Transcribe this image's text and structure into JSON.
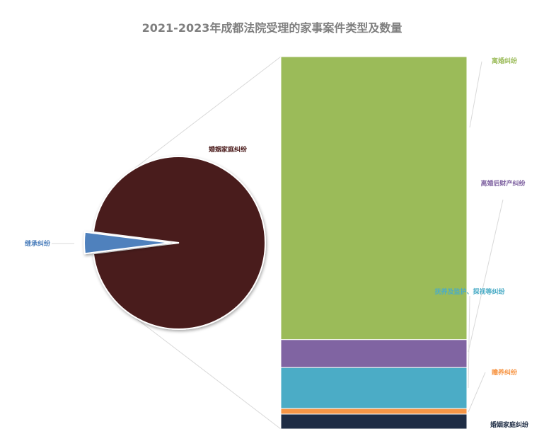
{
  "chart_data": {
    "type": "bar-of-pie",
    "title": "2021-2023年成都法院受理的家事案件类型及数量",
    "pie": {
      "slices": [
        {
          "name": "婚姻家庭纠纷",
          "value": 96,
          "color": "#4a1a1a"
        },
        {
          "name": "继承纠纷",
          "value": 4,
          "color": "#4f81bd"
        }
      ]
    },
    "bar": {
      "parent": "婚姻家庭纠纷",
      "segments": [
        {
          "name": "离婚纠纷",
          "value": 76,
          "color": "#9bbb59"
        },
        {
          "name": "离婚后财产纠纷",
          "value": 7.5,
          "color": "#8064a2"
        },
        {
          "name": "抚养及监护、探视等纠纷",
          "value": 11,
          "color": "#4bacc6"
        },
        {
          "name": "赡养纠纷",
          "value": 1.5,
          "color": "#f79646"
        },
        {
          "name": "婚姻家庭纠纷",
          "value": 4,
          "color": "#1f2d45"
        }
      ]
    },
    "legend": "none"
  }
}
